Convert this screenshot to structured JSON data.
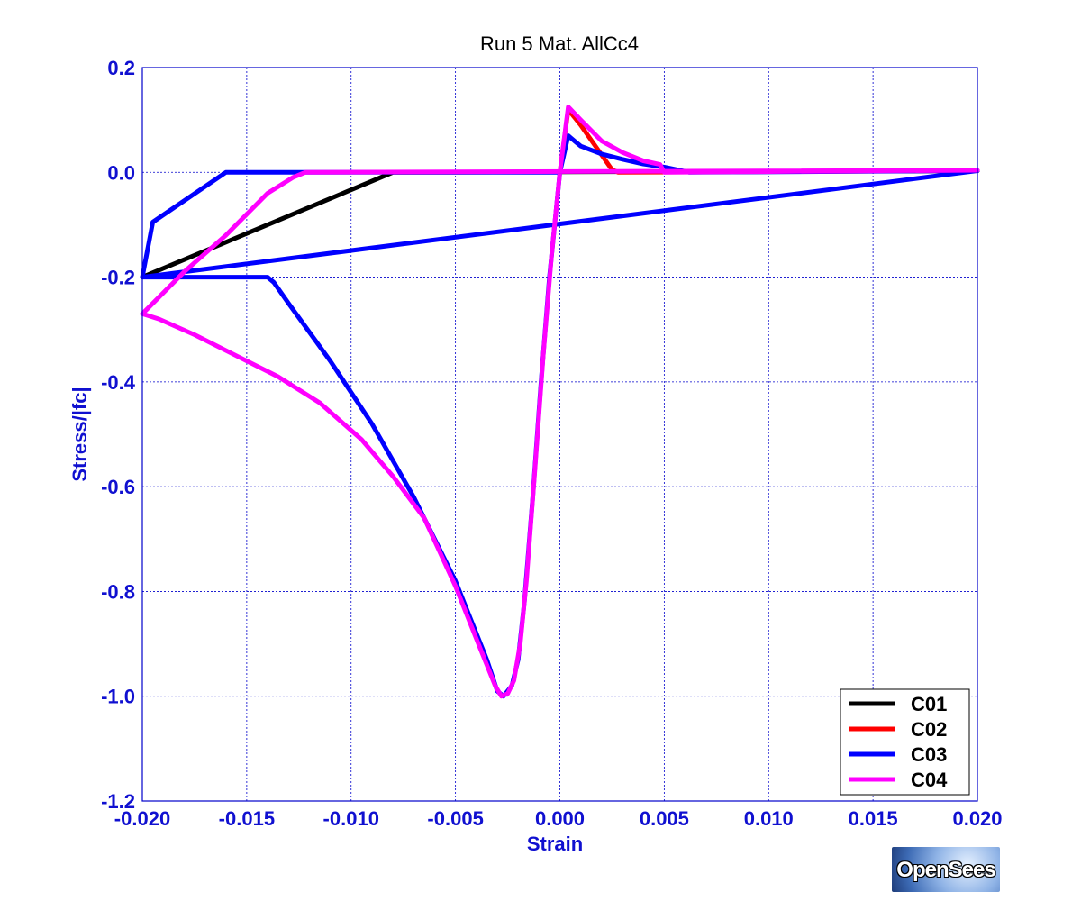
{
  "chart_data": {
    "type": "line",
    "title": "Run 5   Mat. AllCc4",
    "xlabel": "Strain",
    "ylabel": "Stress/|fc|",
    "xlim": [
      -0.02,
      0.02
    ],
    "ylim": [
      -1.2,
      0.2
    ],
    "xticks": [
      -0.02,
      -0.015,
      -0.01,
      -0.005,
      0.0,
      0.005,
      0.01,
      0.015,
      0.02
    ],
    "xtick_labels": [
      "-0.020",
      "-0.015",
      "-0.010",
      "-0.005",
      "0.000",
      "0.005",
      "0.010",
      "0.015",
      "0.020"
    ],
    "yticks": [
      0.2,
      0.0,
      -0.2,
      -0.4,
      -0.6,
      -0.8,
      -1.0,
      -1.2
    ],
    "ytick_labels": [
      "0.2",
      "0.0",
      "-0.2",
      "-0.4",
      "-0.6",
      "-0.8",
      "-1.0",
      "-1.2"
    ],
    "grid": true,
    "legend_position": "bottom-right",
    "series": [
      {
        "name": "C01",
        "color": "#000000",
        "points": [
          [
            -0.02,
            -0.2
          ],
          [
            -0.008,
            0.0
          ],
          [
            0.02,
            0.003
          ]
        ]
      },
      {
        "name": "C02",
        "color": "#ff0000",
        "points": [
          [
            0.0,
            0.0
          ],
          [
            0.0004,
            0.12
          ],
          [
            0.001,
            0.09
          ],
          [
            0.0025,
            0.005
          ],
          [
            0.0028,
            0.0
          ],
          [
            0.02,
            0.003
          ]
        ]
      },
      {
        "name": "C03",
        "color": "#0000ff",
        "points": [
          [
            -0.0195,
            -0.095
          ],
          [
            -0.016,
            0.0
          ],
          [
            -0.0125,
            0.0
          ],
          [
            0.0,
            0.0
          ],
          [
            0.0004,
            0.07
          ],
          [
            0.0007,
            0.06
          ],
          [
            0.001,
            0.05
          ],
          [
            0.002,
            0.035
          ],
          [
            0.003,
            0.025
          ],
          [
            0.004,
            0.016
          ],
          [
            0.005,
            0.01
          ],
          [
            0.0062,
            0.0
          ],
          [
            0.02,
            0.003
          ],
          [
            -0.02,
            -0.2
          ],
          [
            -0.0195,
            -0.095
          ],
          [
            -0.02,
            -0.2
          ],
          [
            -0.014,
            -0.2
          ],
          [
            -0.0137,
            -0.21
          ],
          [
            -0.013,
            -0.25
          ],
          [
            -0.011,
            -0.36
          ],
          [
            -0.009,
            -0.48
          ],
          [
            -0.007,
            -0.62
          ],
          [
            -0.005,
            -0.78
          ],
          [
            -0.0035,
            -0.93
          ],
          [
            -0.003,
            -0.99
          ],
          [
            -0.0027,
            -1.0
          ],
          [
            -0.0023,
            -0.98
          ],
          [
            -0.002,
            -0.93
          ],
          [
            -0.0017,
            -0.82
          ],
          [
            -0.0013,
            -0.62
          ],
          [
            -0.0009,
            -0.4
          ],
          [
            -0.0005,
            -0.2
          ],
          [
            -0.0002,
            -0.08
          ],
          [
            0.0,
            0.0
          ]
        ]
      },
      {
        "name": "C04",
        "color": "#ff00ff",
        "points": [
          [
            -0.02,
            -0.27
          ],
          [
            -0.0192,
            -0.28
          ],
          [
            -0.0175,
            -0.31
          ],
          [
            -0.0155,
            -0.35
          ],
          [
            -0.0135,
            -0.39
          ],
          [
            -0.0115,
            -0.44
          ],
          [
            -0.0095,
            -0.51
          ],
          [
            -0.008,
            -0.58
          ],
          [
            -0.0065,
            -0.66
          ],
          [
            -0.005,
            -0.79
          ],
          [
            -0.0038,
            -0.91
          ],
          [
            -0.0031,
            -0.98
          ],
          [
            -0.0028,
            -1.0
          ],
          [
            -0.0025,
            -0.995
          ],
          [
            -0.0022,
            -0.97
          ],
          [
            -0.0019,
            -0.9
          ],
          [
            -0.0016,
            -0.78
          ],
          [
            -0.0012,
            -0.57
          ],
          [
            -0.0008,
            -0.35
          ],
          [
            -0.0004,
            -0.16
          ],
          [
            0.0,
            0.0
          ],
          [
            0.0004,
            0.125
          ],
          [
            0.001,
            0.1
          ],
          [
            0.002,
            0.06
          ],
          [
            0.003,
            0.038
          ],
          [
            0.004,
            0.022
          ],
          [
            0.0048,
            0.015
          ],
          [
            0.005,
            0.0
          ],
          [
            0.02,
            0.004
          ],
          [
            -0.0122,
            0.0
          ],
          [
            -0.0128,
            -0.01
          ],
          [
            -0.014,
            -0.04
          ],
          [
            -0.016,
            -0.12
          ],
          [
            -0.018,
            -0.19
          ],
          [
            -0.02,
            -0.27
          ]
        ]
      }
    ]
  },
  "branding": {
    "logo_text": "OpenSees"
  }
}
